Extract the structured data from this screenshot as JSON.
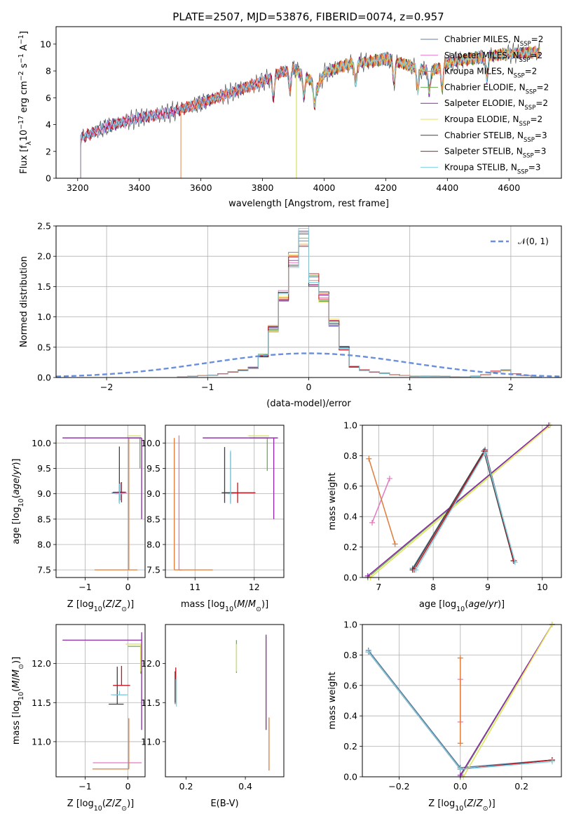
{
  "figure": {
    "title": "PLATE=2507, MJD=53876, FIBERID=0074, z=0.957"
  },
  "models": [
    {
      "name": "Chabrier MILES",
      "nssp": "2",
      "color": "#5f7f9f"
    },
    {
      "name": "Salpeter MILES",
      "nssp": "2",
      "color": "#e377c2"
    },
    {
      "name": "Kroupa MILES",
      "nssp": "2",
      "color": "#e07b39"
    },
    {
      "name": "Chabrier ELODIE",
      "nssp": "2",
      "color": "#6aae4e"
    },
    {
      "name": "Salpeter ELODIE",
      "nssp": "2",
      "color": "#8e24aa"
    },
    {
      "name": "Kroupa ELODIE",
      "nssp": "2",
      "color": "#e2e25a"
    },
    {
      "name": "Chabrier STELIB",
      "nssp": "3",
      "color": "#404040"
    },
    {
      "name": "Salpeter STELIB",
      "nssp": "3",
      "color": "#c0141e"
    },
    {
      "name": "Kroupa STELIB",
      "nssp": "3",
      "color": "#7fd0e0"
    }
  ],
  "chart_data": [
    {
      "id": "spectrum",
      "type": "line",
      "xlabel": "wavelength [Angstrom, rest frame]",
      "ylabel": "Flux [f_λ 10^-17 erg cm^-2 s^-1 A^-1]",
      "xlim": [
        3130,
        4770
      ],
      "ylim": [
        0,
        11.3
      ],
      "xticks": [
        "3200",
        "3400",
        "3600",
        "3800",
        "4000",
        "4200",
        "4400",
        "4600"
      ],
      "yticks": [
        "0",
        "2",
        "4",
        "6",
        "8",
        "10"
      ],
      "legend": "upper-right",
      "continuum_knots": {
        "x": [
          3210,
          3300,
          3400,
          3500,
          3600,
          3700,
          3800,
          3850,
          3900,
          3940,
          3980,
          4000,
          4050,
          4100,
          4150,
          4200,
          4250,
          4300,
          4350,
          4400,
          4500,
          4600,
          4700
        ],
        "y": [
          3.0,
          3.9,
          4.5,
          4.9,
          5.6,
          6.4,
          7.2,
          7.8,
          8.2,
          7.6,
          6.8,
          7.8,
          8.3,
          8.6,
          8.7,
          8.9,
          8.6,
          8.2,
          8.0,
          8.6,
          9.0,
          9.3,
          9.4
        ]
      },
      "model_starts": [
        3210,
        3210,
        3535,
        3910,
        3210,
        3910,
        3210,
        3210,
        3210
      ]
    },
    {
      "id": "residuals",
      "type": "bar",
      "xlabel": "(data-model)/error",
      "ylabel": "Normed distribution",
      "xlim": [
        -2.5,
        2.5
      ],
      "ylim": [
        0,
        2.5
      ],
      "xticks": [
        "−2",
        "−1",
        "0",
        "1",
        "2"
      ],
      "yticks": [
        "0.0",
        "0.5",
        "1.0",
        "1.5",
        "2.0",
        "2.5"
      ],
      "grid": true,
      "legend": "upper-right",
      "reference_label": "𝒩(0, 1)",
      "reference_color": "#6a8fdc",
      "bin_width": 0.1,
      "hist_values": [
        0.0,
        0.0,
        0.0,
        0.0,
        0.0,
        0.0,
        0.0,
        0.0,
        0.0,
        0.0,
        0.0,
        0.0,
        0.01,
        0.02,
        0.03,
        0.04,
        0.06,
        0.09,
        0.12,
        0.16,
        0.36,
        0.8,
        1.34,
        1.93,
        2.3,
        1.6,
        1.32,
        0.9,
        0.48,
        0.18,
        0.12,
        0.09,
        0.07,
        0.05,
        0.03,
        0.02,
        0.02,
        0.02,
        0.02,
        0.01,
        0.01,
        0.02,
        0.05,
        0.1,
        0.12,
        0.06,
        0.03,
        0.01,
        0.0,
        0.0
      ]
    },
    {
      "id": "age-vs-z",
      "type": "scatter",
      "xlabel": "Z [log10(Z/Z⊙)]",
      "ylabel": "age [log10(age/yr)]",
      "xlim": [
        -1.68,
        0.4
      ],
      "ylim": [
        7.35,
        10.35
      ],
      "xticks": [
        "−1",
        "0"
      ],
      "yticks": [
        "7.5",
        "8.0",
        "8.5",
        "9.0",
        "9.5",
        "10.0"
      ],
      "grid": true,
      "points": [
        {
          "model": 0,
          "x": -0.2,
          "y": 9.02,
          "xerr": [
            0.18,
            0.12
          ],
          "yerr": [
            0.2,
            0.15
          ]
        },
        {
          "model": 1,
          "x": -0.18,
          "y": 9.02,
          "xerr": [
            0.12,
            0.15
          ],
          "yerr": [
            0.15,
            0.2
          ]
        },
        {
          "model": 2,
          "x": 0.02,
          "y": 7.5,
          "xerr": [
            0.8,
            0.2
          ],
          "yerr": [
            0.0,
            2.6
          ]
        },
        {
          "model": 3,
          "x": 0.28,
          "y": 10.1,
          "xerr": [
            0.3,
            0.02
          ],
          "yerr": [
            0.6,
            0.0
          ]
        },
        {
          "model": 4,
          "x": 0.32,
          "y": 10.1,
          "xerr": [
            1.85,
            0.0
          ],
          "yerr": [
            1.6,
            0.0
          ]
        },
        {
          "model": 5,
          "x": 0.3,
          "y": 10.14,
          "xerr": [
            0.32,
            0.0
          ],
          "yerr": [
            0.0,
            0.0
          ]
        },
        {
          "model": 6,
          "x": -0.2,
          "y": 9.03,
          "xerr": [
            0.15,
            0.15
          ],
          "yerr": [
            0.2,
            0.9
          ]
        },
        {
          "model": 7,
          "x": -0.15,
          "y": 9.03,
          "xerr": [
            0.1,
            0.1
          ],
          "yerr": [
            0.2,
            0.2
          ]
        },
        {
          "model": 8,
          "x": -0.2,
          "y": 9.0,
          "xerr": [
            0.1,
            0.1
          ],
          "yerr": [
            0.2,
            0.2
          ]
        }
      ]
    },
    {
      "id": "age-vs-mass",
      "type": "scatter",
      "xlabel": "mass [log10(M/M⊙)]",
      "ylabel": "",
      "xlim": [
        10.5,
        12.5
      ],
      "ylim": [
        7.35,
        10.35
      ],
      "xticks": [
        "11",
        "12"
      ],
      "yticks": [
        "7.5",
        "8.0",
        "8.5",
        "9.0",
        "9.5",
        "10.0"
      ],
      "grid": true,
      "points": [
        {
          "model": 0,
          "x": 11.6,
          "y": 9.02,
          "xerr": [
            0.1,
            0.1
          ],
          "yerr": [
            0.2,
            0.8
          ]
        },
        {
          "model": 1,
          "x": 10.73,
          "y": 7.5,
          "xerr": [
            0.0,
            0.05
          ],
          "yerr": [
            0.0,
            2.65
          ]
        },
        {
          "model": 2,
          "x": 10.65,
          "y": 7.5,
          "xerr": [
            0.0,
            0.65
          ],
          "yerr": [
            0.0,
            2.6
          ]
        },
        {
          "model": 3,
          "x": 12.22,
          "y": 10.1,
          "xerr": [
            0.3,
            0.03
          ],
          "yerr": [
            0.65,
            0.0
          ]
        },
        {
          "model": 4,
          "x": 12.33,
          "y": 10.1,
          "xerr": [
            1.2,
            0.07
          ],
          "yerr": [
            1.6,
            0.0
          ]
        },
        {
          "model": 5,
          "x": 12.25,
          "y": 10.14,
          "xerr": [
            0.35,
            0.0
          ],
          "yerr": [
            0.0,
            0.0
          ]
        },
        {
          "model": 6,
          "x": 11.5,
          "y": 9.02,
          "xerr": [
            0.05,
            0.2
          ],
          "yerr": [
            0.2,
            0.9
          ]
        },
        {
          "model": 7,
          "x": 11.72,
          "y": 9.02,
          "xerr": [
            0.1,
            0.3
          ],
          "yerr": [
            0.2,
            0.2
          ]
        },
        {
          "model": 8,
          "x": 11.6,
          "y": 9.0,
          "xerr": [
            0.05,
            0.05
          ],
          "yerr": [
            0.2,
            0.85
          ]
        }
      ]
    },
    {
      "id": "weight-vs-age",
      "type": "line",
      "xlabel": "age [log10(age/yr)]",
      "ylabel": "mass weight",
      "xlim": [
        6.7,
        10.35
      ],
      "ylim": [
        0,
        1.0
      ],
      "xticks": [
        "7",
        "8",
        "9",
        "10"
      ],
      "yticks": [
        "0.0",
        "0.2",
        "0.4",
        "0.6",
        "0.8",
        "1.0"
      ],
      "grid": true,
      "series": [
        {
          "model": 0,
          "x": [
            7.62,
            8.95,
            9.48
          ],
          "y": [
            0.06,
            0.84,
            0.11
          ]
        },
        {
          "model": 1,
          "x": [
            6.88,
            7.2
          ],
          "y": [
            0.36,
            0.65
          ]
        },
        {
          "model": 2,
          "x": [
            6.82,
            7.3
          ],
          "y": [
            0.78,
            0.22
          ]
        },
        {
          "model": 3,
          "x": [
            6.8,
            10.12
          ],
          "y": [
            0.0,
            1.0
          ]
        },
        {
          "model": 4,
          "x": [
            6.8,
            10.12
          ],
          "y": [
            0.01,
            1.0
          ]
        },
        {
          "model": 5,
          "x": [
            6.85,
            10.15
          ],
          "y": [
            0.0,
            1.0
          ]
        },
        {
          "model": 6,
          "x": [
            7.62,
            8.93,
            9.47
          ],
          "y": [
            0.05,
            0.83,
            0.11
          ]
        },
        {
          "model": 7,
          "x": [
            7.65,
            8.95,
            9.48
          ],
          "y": [
            0.05,
            0.83,
            0.11
          ]
        },
        {
          "model": 8,
          "x": [
            7.68,
            8.95,
            9.5
          ],
          "y": [
            0.05,
            0.82,
            0.1
          ]
        }
      ]
    },
    {
      "id": "mass-vs-z",
      "type": "scatter",
      "xlabel": "Z [log10(Z/Z⊙)]",
      "ylabel": "mass [log10(M/M⊙)]",
      "xlim": [
        -1.68,
        0.4
      ],
      "ylim": [
        10.55,
        12.5
      ],
      "xticks": [
        "−1",
        "0"
      ],
      "yticks": [
        "11.0",
        "11.5",
        "12.0"
      ],
      "grid": true,
      "points": [
        {
          "model": 0,
          "x": -0.2,
          "y": 11.6,
          "xerr": [
            0.15,
            0.15
          ],
          "yerr": [
            0.0,
            0.0
          ]
        },
        {
          "model": 1,
          "x": 0.0,
          "y": 10.73,
          "xerr": [
            0.82,
            0.32
          ],
          "yerr": [
            0.0,
            0.0
          ]
        },
        {
          "model": 2,
          "x": 0.02,
          "y": 10.65,
          "xerr": [
            0.85,
            0.0
          ],
          "yerr": [
            0.0,
            0.65
          ]
        },
        {
          "model": 3,
          "x": 0.3,
          "y": 12.22,
          "xerr": [
            0.3,
            0.0
          ],
          "yerr": [
            0.35,
            0.0
          ]
        },
        {
          "model": 4,
          "x": 0.32,
          "y": 12.3,
          "xerr": [
            1.85,
            0.0
          ],
          "yerr": [
            1.15,
            0.1
          ]
        },
        {
          "model": 5,
          "x": 0.3,
          "y": 12.25,
          "xerr": [
            0.35,
            0.0
          ],
          "yerr": [
            0.35,
            0.0
          ]
        },
        {
          "model": 6,
          "x": -0.25,
          "y": 11.48,
          "xerr": [
            0.2,
            0.15
          ],
          "yerr": [
            0.0,
            0.48
          ]
        },
        {
          "model": 7,
          "x": -0.15,
          "y": 11.72,
          "xerr": [
            0.2,
            0.2
          ],
          "yerr": [
            0.0,
            0.25
          ]
        },
        {
          "model": 8,
          "x": -0.2,
          "y": 11.6,
          "xerr": [
            0.2,
            0.2
          ],
          "yerr": [
            0.0,
            0.05
          ]
        }
      ]
    },
    {
      "id": "mass-vs-ebv",
      "type": "scatter",
      "xlabel": "E(B-V)",
      "ylabel": "",
      "xlim": [
        0.13,
        0.53
      ],
      "ylim": [
        10.55,
        12.5
      ],
      "xticks": [
        "0.2",
        "0.4"
      ],
      "yticks": [
        "11.0",
        "11.5",
        "12.0"
      ],
      "grid": false,
      "points": [
        {
          "model": 0,
          "x": 0.163,
          "y": 11.6,
          "xerr": [
            0.0,
            0.0
          ],
          "yerr": [
            0.12,
            0.3
          ]
        },
        {
          "model": 1,
          "x": 0.477,
          "y": 10.73,
          "xerr": [
            0.0,
            0.0
          ],
          "yerr": [
            0.0,
            0.0
          ]
        },
        {
          "model": 2,
          "x": 0.48,
          "y": 10.63,
          "xerr": [
            0.0,
            0.0
          ],
          "yerr": [
            0.0,
            0.68
          ]
        },
        {
          "model": 3,
          "x": 0.37,
          "y": 12.1,
          "xerr": [
            0.0,
            0.0
          ],
          "yerr": [
            0.22,
            0.2
          ]
        },
        {
          "model": 4,
          "x": 0.47,
          "y": 11.75,
          "xerr": [
            0.0,
            0.0
          ],
          "yerr": [
            0.6,
            0.62
          ]
        },
        {
          "model": 5,
          "x": 0.37,
          "y": 12.05,
          "xerr": [
            0.0,
            0.0
          ],
          "yerr": [
            0.15,
            0.2
          ]
        },
        {
          "model": 6,
          "x": 0.163,
          "y": 11.5,
          "xerr": [
            0.0,
            0.0
          ],
          "yerr": [
            0.0,
            0.4
          ]
        },
        {
          "model": 7,
          "x": 0.165,
          "y": 11.8,
          "xerr": [
            0.0,
            0.0
          ],
          "yerr": [
            0.0,
            0.15
          ]
        },
        {
          "model": 8,
          "x": 0.167,
          "y": 11.65,
          "xerr": [
            0.0,
            0.0
          ],
          "yerr": [
            0.2,
            0.2
          ]
        }
      ]
    },
    {
      "id": "weight-vs-z",
      "type": "line",
      "xlabel": "Z [log10(Z/Z⊙)]",
      "ylabel": "mass weight",
      "xlim": [
        -0.32,
        0.33
      ],
      "ylim": [
        0,
        1.0
      ],
      "xticks": [
        "−0.2",
        "0.0",
        "0.2"
      ],
      "yticks": [
        "0.0",
        "0.2",
        "0.4",
        "0.6",
        "0.8",
        "1.0"
      ],
      "grid": true,
      "series": [
        {
          "model": 0,
          "x": [
            -0.3,
            0.0,
            0.3
          ],
          "y": [
            0.83,
            0.06,
            0.11
          ]
        },
        {
          "model": 1,
          "x": [
            0.0,
            0.0
          ],
          "y": [
            0.36,
            0.64
          ]
        },
        {
          "model": 2,
          "x": [
            0.0,
            0.0
          ],
          "y": [
            0.22,
            0.78
          ]
        },
        {
          "model": 3,
          "x": [
            0.0,
            0.3
          ],
          "y": [
            0.0,
            1.0
          ]
        },
        {
          "model": 4,
          "x": [
            0.0,
            0.3
          ],
          "y": [
            0.01,
            1.0
          ]
        },
        {
          "model": 5,
          "x": [
            0.01,
            0.3
          ],
          "y": [
            0.0,
            1.0
          ]
        },
        {
          "model": 6,
          "x": [
            -0.3,
            0.0,
            0.3
          ],
          "y": [
            0.82,
            0.05,
            0.11
          ]
        },
        {
          "model": 7,
          "x": [
            -0.3,
            0.0,
            0.3
          ],
          "y": [
            0.82,
            0.05,
            0.11
          ]
        },
        {
          "model": 8,
          "x": [
            -0.3,
            0.0,
            0.3
          ],
          "y": [
            0.82,
            0.05,
            0.1
          ]
        }
      ]
    }
  ]
}
